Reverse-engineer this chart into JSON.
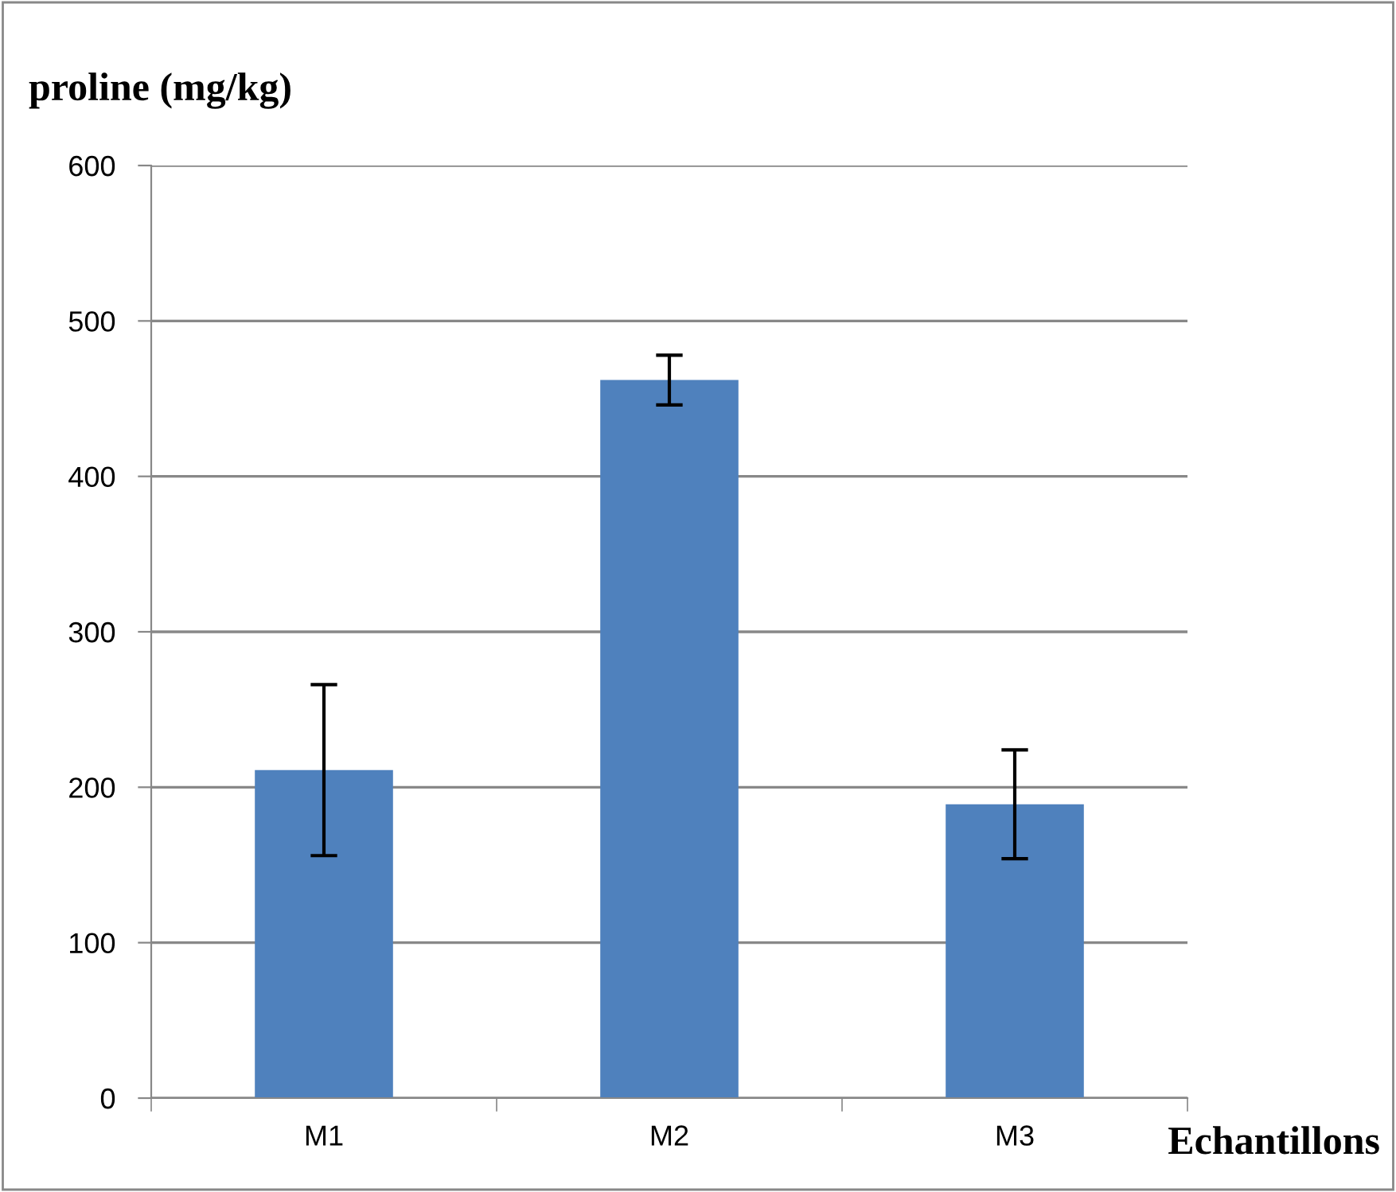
{
  "chart_data": {
    "type": "bar",
    "ylabel": "proline (mg/kg)",
    "xlabel": "Echantillons",
    "categories": [
      "M1",
      "M2",
      "M3"
    ],
    "series": [
      {
        "color": "#4f81bd",
        "values": [
          211,
          462,
          189
        ],
        "errors": [
          55,
          16,
          35
        ]
      }
    ],
    "ylim": [
      0,
      600
    ],
    "yticks": [
      0,
      100,
      200,
      300,
      400,
      500,
      600
    ],
    "grid": "y"
  }
}
